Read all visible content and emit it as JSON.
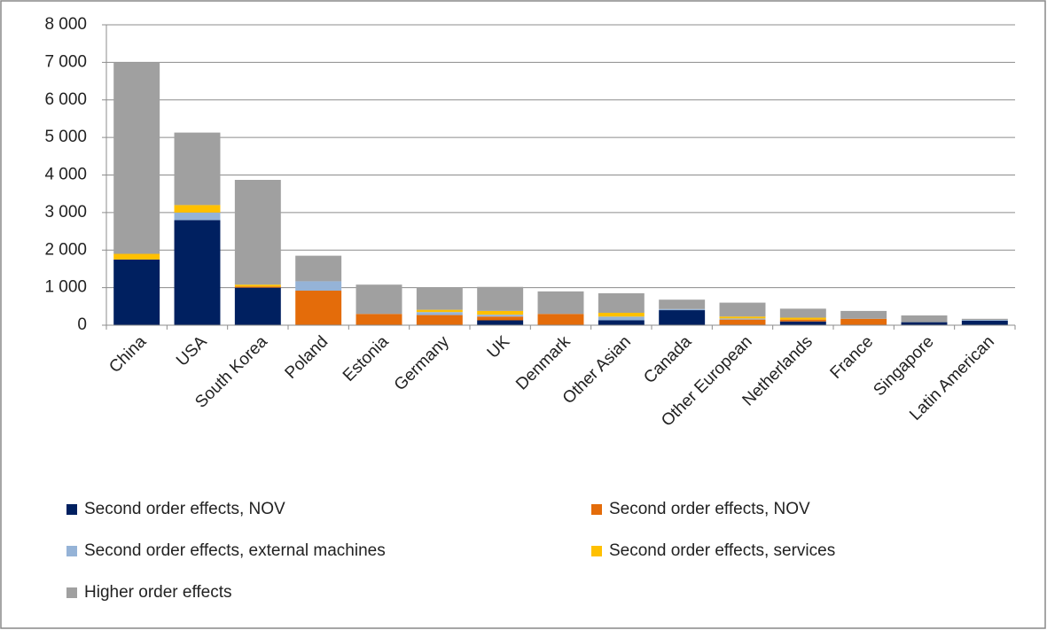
{
  "chart_data": {
    "type": "stacked_bar",
    "categories": [
      "China",
      "USA",
      "South Korea",
      "Poland",
      "Estonia",
      "Germany",
      "UK",
      "Denmark",
      "Other Asian",
      "Canada",
      "Other European",
      "Netherlands",
      "France",
      "Singapore",
      "Latin American"
    ],
    "series": [
      {
        "name": "Second order effects, NOV",
        "color": "#002060",
        "values": [
          1750,
          2800,
          1000,
          0,
          0,
          0,
          130,
          0,
          130,
          400,
          0,
          100,
          0,
          80,
          120
        ]
      },
      {
        "name": "Second order effects, NOV",
        "color": "#E46C0A",
        "values": [
          0,
          0,
          30,
          920,
          300,
          270,
          100,
          300,
          0,
          0,
          150,
          50,
          170,
          0,
          0
        ]
      },
      {
        "name": "Second order effects, external machines",
        "color": "#95B3D7",
        "values": [
          0,
          200,
          0,
          250,
          0,
          80,
          50,
          0,
          100,
          30,
          30,
          0,
          0,
          0,
          20
        ]
      },
      {
        "name": "Second order effects, services",
        "color": "#FFC000",
        "values": [
          150,
          200,
          50,
          0,
          0,
          60,
          100,
          0,
          100,
          0,
          50,
          50,
          0,
          0,
          0
        ]
      },
      {
        "name": "Higher order effects",
        "color": "#A0A0A0",
        "values": [
          5100,
          1930,
          2790,
          680,
          780,
          590,
          640,
          600,
          520,
          250,
          370,
          240,
          210,
          180,
          30
        ]
      }
    ],
    "ylim": [
      0,
      8000
    ],
    "yticks": [
      0,
      {
        "value": 1000,
        "label": "1 000"
      },
      {
        "value": 2000,
        "label": "2 000"
      },
      {
        "value": 3000,
        "label": "3 000"
      },
      {
        "value": 4000,
        "label": "4 000"
      },
      {
        "value": 5000,
        "label": "5 000"
      },
      {
        "value": 6000,
        "label": "6 000"
      },
      {
        "value": 7000,
        "label": "7 000"
      },
      {
        "value": 8000,
        "label": "8 000"
      }
    ],
    "grid": true
  }
}
